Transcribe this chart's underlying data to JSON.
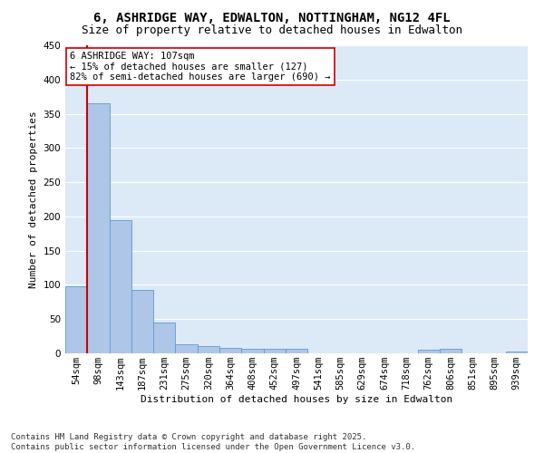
{
  "title": "6, ASHRIDGE WAY, EDWALTON, NOTTINGHAM, NG12 4FL",
  "subtitle": "Size of property relative to detached houses in Edwalton",
  "xlabel": "Distribution of detached houses by size in Edwalton",
  "ylabel": "Number of detached properties",
  "categories": [
    "54sqm",
    "98sqm",
    "143sqm",
    "187sqm",
    "231sqm",
    "275sqm",
    "320sqm",
    "364sqm",
    "408sqm",
    "452sqm",
    "497sqm",
    "541sqm",
    "585sqm",
    "629sqm",
    "674sqm",
    "718sqm",
    "762sqm",
    "806sqm",
    "851sqm",
    "895sqm",
    "939sqm"
  ],
  "values": [
    98,
    365,
    195,
    93,
    45,
    13,
    10,
    8,
    7,
    6,
    6,
    0,
    0,
    0,
    0,
    0,
    5,
    6,
    0,
    0,
    3
  ],
  "bar_color": "#aec6e8",
  "bar_edge_color": "#5b9bd5",
  "vline_color": "#cc0000",
  "vline_x": 0.5,
  "annotation_line1": "6 ASHRIDGE WAY: 107sqm",
  "annotation_line2": "← 15% of detached houses are smaller (127)",
  "annotation_line3": "82% of semi-detached houses are larger (690) →",
  "annotation_box_color": "#ffffff",
  "annotation_box_edge": "#cc0000",
  "ylim": [
    0,
    450
  ],
  "yticks": [
    0,
    50,
    100,
    150,
    200,
    250,
    300,
    350,
    400,
    450
  ],
  "footer": "Contains HM Land Registry data © Crown copyright and database right 2025.\nContains public sector information licensed under the Open Government Licence v3.0.",
  "bg_color": "#ffffff",
  "plot_bg_color": "#dce9f7",
  "grid_color": "#ffffff",
  "title_fontsize": 10,
  "subtitle_fontsize": 9,
  "axis_label_fontsize": 8,
  "tick_fontsize": 7.5,
  "annotation_fontsize": 7.5,
  "footer_fontsize": 6.5
}
